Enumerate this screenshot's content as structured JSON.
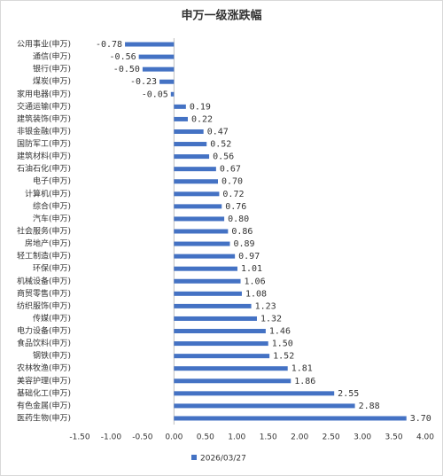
{
  "chart_data": {
    "type": "bar",
    "orientation": "horizontal",
    "title": "申万一级涨跌幅",
    "categories": [
      "公用事业(申万)",
      "通信(申万)",
      "银行(申万)",
      "煤炭(申万)",
      "家用电器(申万)",
      "交通运输(申万)",
      "建筑装饰(申万)",
      "非银金融(申万)",
      "国防军工(申万)",
      "建筑材料(申万)",
      "石油石化(申万)",
      "电子(申万)",
      "计算机(申万)",
      "综合(申万)",
      "汽车(申万)",
      "社会服务(申万)",
      "房地产(申万)",
      "轻工制造(申万)",
      "环保(申万)",
      "机械设备(申万)",
      "商贸零售(申万)",
      "纺织服饰(申万)",
      "传媒(申万)",
      "电力设备(申万)",
      "食品饮料(申万)",
      "钢铁(申万)",
      "农林牧渔(申万)",
      "美容护理(申万)",
      "基础化工(申万)",
      "有色金属(申万)",
      "医药生物(申万)"
    ],
    "series": [
      {
        "name": "2026/03/27",
        "color": "#4472c4",
        "values": [
          -0.78,
          -0.56,
          -0.5,
          -0.23,
          -0.05,
          0.19,
          0.22,
          0.47,
          0.52,
          0.56,
          0.67,
          0.7,
          0.72,
          0.76,
          0.8,
          0.86,
          0.89,
          0.97,
          1.01,
          1.06,
          1.08,
          1.23,
          1.32,
          1.46,
          1.5,
          1.52,
          1.81,
          1.86,
          2.55,
          2.88,
          3.7
        ],
        "value_labels": [
          "-0.78",
          "-0.56",
          "-0.50",
          "-0.23",
          "-0.05",
          "0.19",
          "0.22",
          "0.47",
          "0.52",
          "0.56",
          "0.67",
          "0.70",
          "0.72",
          "0.76",
          "0.80",
          "0.86",
          "0.89",
          "0.97",
          "1.01",
          "1.06",
          "1.08",
          "1.23",
          "1.32",
          "1.46",
          "1.50",
          "1.52",
          "1.81",
          "1.86",
          "2.55",
          "2.88",
          "3.70"
        ]
      }
    ],
    "xlim": [
      -1.5,
      4
    ],
    "xticks": [
      {
        "value": -1.5,
        "label": "-1.50"
      },
      {
        "value": -1,
        "label": "-1.00"
      },
      {
        "value": -0.5,
        "label": "-0.50"
      },
      {
        "value": 0,
        "label": "0.00"
      },
      {
        "value": 0.5,
        "label": "0.50"
      },
      {
        "value": 1,
        "label": "1.00"
      },
      {
        "value": 1.5,
        "label": "1.50"
      },
      {
        "value": 2,
        "label": "2.00"
      },
      {
        "value": 2.5,
        "label": "2.50"
      },
      {
        "value": 3,
        "label": "3.00"
      },
      {
        "value": 3.5,
        "label": "3.50"
      },
      {
        "value": 4,
        "label": "4.00"
      }
    ],
    "grid": false,
    "legend": "bottom"
  }
}
